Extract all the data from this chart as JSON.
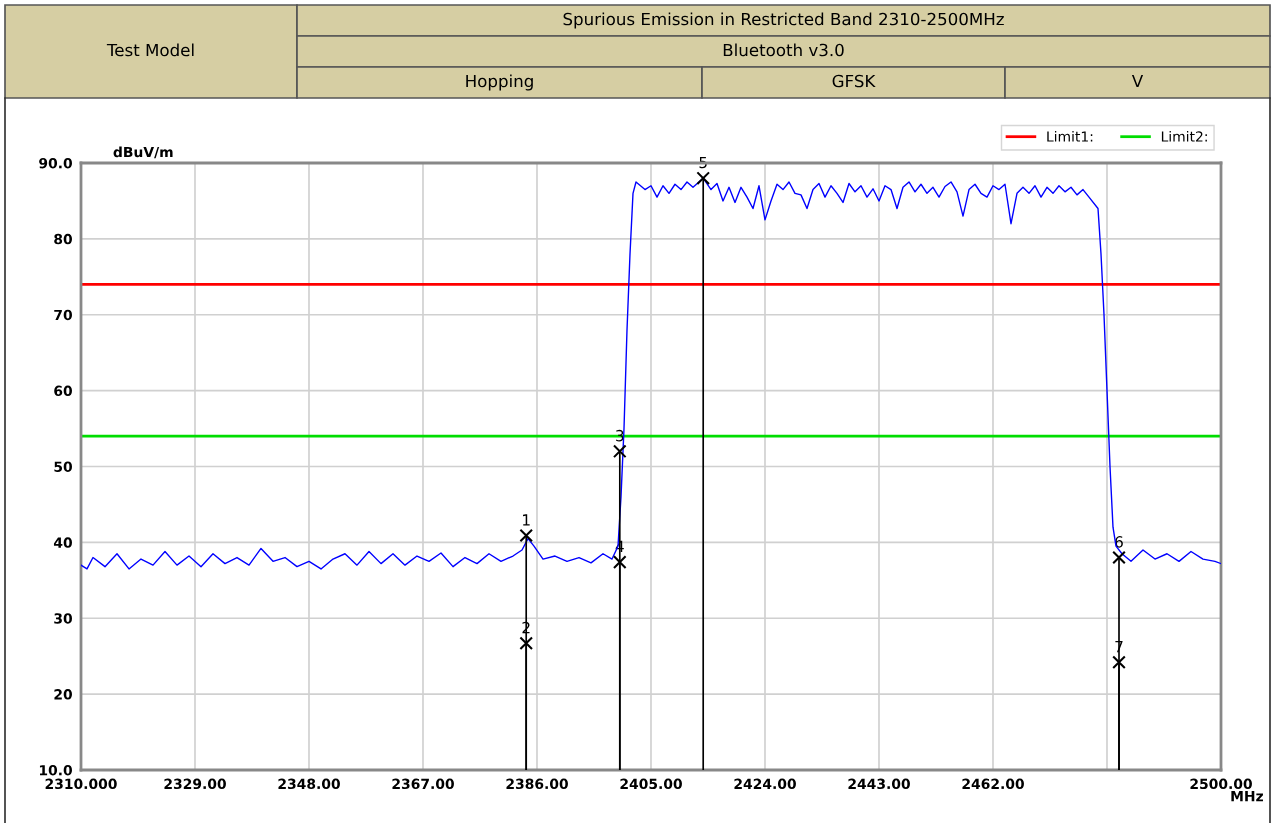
{
  "chart_data": {
    "type": "line",
    "title": "Spurious Emission in Restricted Band 2310-2500MHz",
    "subtitle": "Bluetooth v3.0",
    "annotations": [
      "Test Model",
      "Hopping",
      "GFSK",
      "V",
      {
        "text": "1",
        "x": 2384.2,
        "y": 40.9
      },
      {
        "text": "2",
        "x": 2384.2,
        "y": 26.7
      },
      {
        "text": "3",
        "x": 2399.8,
        "y": 52.0
      },
      {
        "text": "4",
        "x": 2399.8,
        "y": 37.4
      },
      {
        "text": "5",
        "x": 2413.7,
        "y": 88.0
      },
      {
        "text": "6",
        "x": 2483.0,
        "y": 38.0
      },
      {
        "text": "7",
        "x": 2483.0,
        "y": 24.2
      }
    ],
    "xlabel": "MHz",
    "ylabel": "dBuV/m",
    "xlim": [
      2310,
      2500
    ],
    "ylim": [
      10,
      90
    ],
    "xticks": [
      {
        "value": 2310,
        "label": "2310.000"
      },
      {
        "value": 2329,
        "label": "2329.00"
      },
      {
        "value": 2348,
        "label": "2348.00"
      },
      {
        "value": 2367,
        "label": "2367.00"
      },
      {
        "value": 2386,
        "label": "2386.00"
      },
      {
        "value": 2405,
        "label": "2405.00"
      },
      {
        "value": 2424,
        "label": "2424.00"
      },
      {
        "value": 2443,
        "label": "2443.00"
      },
      {
        "value": 2462,
        "label": "2462.00"
      },
      {
        "value": 2481,
        "label": null
      },
      {
        "value": 2500,
        "label": "2500.00"
      }
    ],
    "yticks": [
      {
        "value": 10,
        "label": "10.0"
      },
      20,
      30,
      40,
      50,
      60,
      70,
      80,
      {
        "value": 90,
        "label": "90.0"
      }
    ],
    "grid": true,
    "legend": "top right",
    "ref_lines": [
      {
        "axis": "y",
        "value": 74,
        "label": "Limit1:",
        "color": "#ff0000"
      },
      {
        "axis": "y",
        "value": 54,
        "label": "Limit2:",
        "color": "#00dd00"
      }
    ],
    "series": [
      {
        "color": "#0000ff",
        "x": [
          2310,
          2311,
          2312,
          2314,
          2316,
          2318,
          2320,
          2322,
          2324,
          2326,
          2328,
          2330,
          2332,
          2334,
          2336,
          2338,
          2340,
          2342,
          2344,
          2346,
          2348,
          2350,
          2352,
          2354,
          2356,
          2358,
          2360,
          2362,
          2364,
          2366,
          2368,
          2370,
          2372,
          2374,
          2376,
          2378,
          2380,
          2382,
          2383.5,
          2384.5,
          2385.5,
          2387,
          2389,
          2391,
          2393,
          2395,
          2397,
          2398.5,
          2399.5,
          2400,
          2400.5,
          2401,
          2401.5,
          2402,
          2402.5,
          2404,
          2405,
          2406,
          2407,
          2408,
          2409,
          2410,
          2411,
          2412,
          2413.7,
          2415,
          2416,
          2417,
          2418,
          2419,
          2420,
          2421,
          2422,
          2423,
          2424,
          2425,
          2426,
          2427,
          2428,
          2429,
          2430,
          2431,
          2432,
          2433,
          2434,
          2435,
          2436,
          2437,
          2438,
          2439,
          2440,
          2441,
          2442,
          2443,
          2444,
          2445,
          2446,
          2447,
          2448,
          2449,
          2450,
          2451,
          2452,
          2453,
          2454,
          2455,
          2456,
          2457,
          2458,
          2459,
          2460,
          2461,
          2462,
          2463,
          2464,
          2465,
          2466,
          2467,
          2468,
          2469,
          2470,
          2471,
          2472,
          2473,
          2474,
          2475,
          2476,
          2477,
          2478,
          2479.5,
          2480,
          2480.5,
          2481,
          2481.5,
          2482,
          2482.5,
          2483.5,
          2485,
          2487,
          2489,
          2491,
          2493,
          2495,
          2497,
          2499,
          2500
        ],
        "values": [
          37,
          36.5,
          38,
          36.8,
          38.5,
          36.5,
          37.8,
          37,
          38.8,
          37,
          38.2,
          36.8,
          38.5,
          37.2,
          38,
          37,
          39.2,
          37.5,
          38,
          36.8,
          37.5,
          36.5,
          37.8,
          38.5,
          37,
          38.8,
          37.2,
          38.5,
          37,
          38.2,
          37.5,
          38.6,
          36.8,
          38,
          37.2,
          38.5,
          37.5,
          38.2,
          39,
          40.5,
          39.5,
          37.8,
          38.2,
          37.5,
          38,
          37.3,
          38.5,
          37.8,
          39.5,
          46,
          55,
          68,
          78,
          86,
          87.5,
          86.5,
          87,
          85.5,
          87,
          86,
          87.2,
          86.5,
          87.5,
          86.8,
          88,
          86.5,
          87.3,
          85,
          86.8,
          84.8,
          86.8,
          85.5,
          84,
          87,
          82.5,
          85,
          87.2,
          86.5,
          87.5,
          86,
          85.8,
          84,
          86.5,
          87.3,
          85.5,
          87,
          86,
          84.8,
          87.3,
          86.2,
          87,
          85.5,
          86.6,
          85,
          87,
          86.5,
          84,
          86.8,
          87.5,
          86.2,
          87.2,
          86,
          86.8,
          85.5,
          86.9,
          87.5,
          86.2,
          83,
          86.5,
          87.2,
          86,
          85.5,
          87,
          86.5,
          87.2,
          82,
          86,
          86.8,
          86,
          87,
          85.5,
          86.8,
          86,
          87,
          86.2,
          86.8,
          85.8,
          86.5,
          85.5,
          84,
          78,
          70,
          60,
          50,
          42,
          39.5,
          38.5,
          37.5,
          39,
          37.8,
          38.5,
          37.5,
          38.8,
          37.8,
          37.5,
          37.2
        ]
      },
      {
        "type": "lollipop",
        "color": "#000000",
        "marker": "cross",
        "x": [
          2384.2,
          2384.2,
          2399.8,
          2399.8,
          2413.7,
          2483.0,
          2483.0
        ],
        "values": [
          40.9,
          26.7,
          52.0,
          37.4,
          88.0,
          38.0,
          24.2
        ]
      }
    ]
  }
}
